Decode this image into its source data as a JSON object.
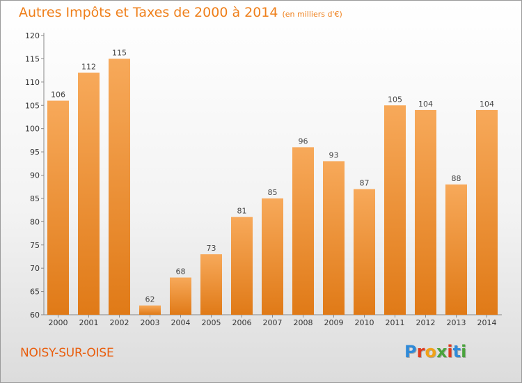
{
  "title": "Autres Impôts et Taxes de 2000 à 2014",
  "subtitle": "(en milliers d'€)",
  "city": "NOISY-SUR-OISE",
  "brand": "Proxiti",
  "colors": {
    "accent": "#ef7f1a",
    "bar_light": "#f7a95a",
    "bar_dark": "#e07a17",
    "city": "#e95d0c",
    "logo": [
      "#2f8ad8",
      "#e03a1e",
      "#f0a218",
      "#4aa33c",
      "#e03a1e",
      "#2f8ad8",
      "#4aa33c"
    ]
  },
  "chart_data": {
    "type": "bar",
    "title": "Autres Impôts et Taxes de 2000 à 2014",
    "subtitle": "(en milliers d'€)",
    "categories": [
      "2000",
      "2001",
      "2002",
      "2003",
      "2004",
      "2005",
      "2006",
      "2007",
      "2008",
      "2009",
      "2010",
      "2011",
      "2012",
      "2013",
      "2014"
    ],
    "values": [
      106,
      112,
      115,
      62,
      68,
      73,
      81,
      85,
      96,
      93,
      87,
      105,
      104,
      88,
      104
    ],
    "ylim": [
      60,
      120
    ],
    "yticks": [
      60,
      65,
      70,
      75,
      80,
      85,
      90,
      95,
      100,
      105,
      110,
      115,
      120
    ],
    "grid": false,
    "legend": "none"
  }
}
